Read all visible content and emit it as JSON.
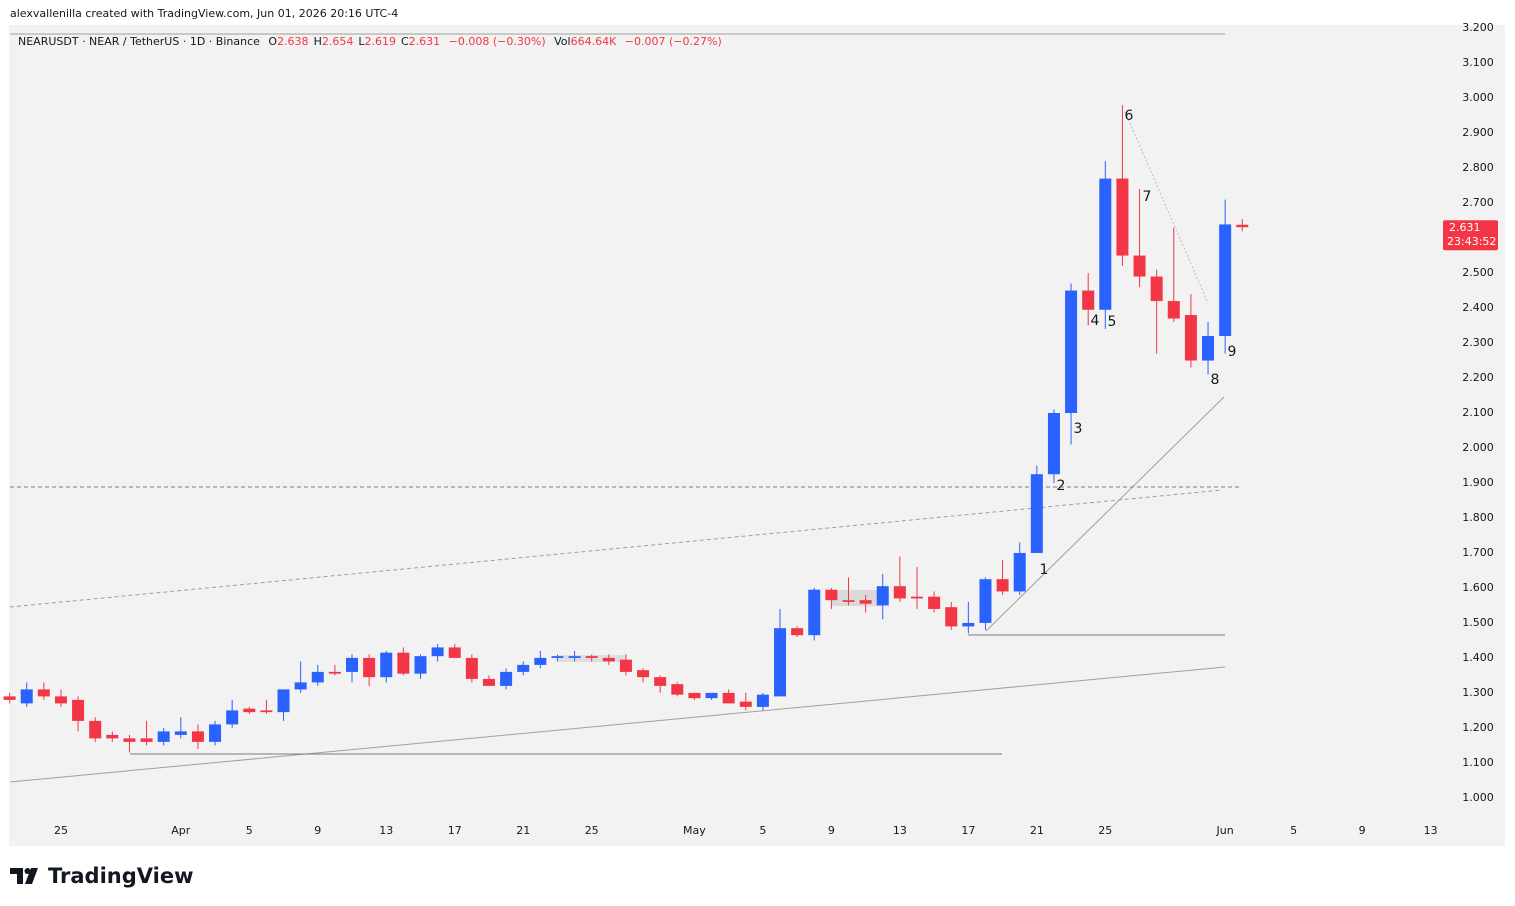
{
  "attribution": "alexvallenilla created with TradingView.com, Jun 01, 2026 20:16 UTC-4",
  "legend": {
    "symbol": "NEARUSDT · NEAR / TetherUS · 1D · Binance",
    "ohlc": [
      {
        "label": "O",
        "value": "2.638"
      },
      {
        "label": "H",
        "value": "2.654"
      },
      {
        "label": "L",
        "value": "2.619"
      },
      {
        "label": "C",
        "value": "2.631"
      }
    ],
    "change": "−0.008 (−0.30%)",
    "volume": {
      "label": "Vol",
      "value": "664.64K",
      "change": "−0.007 (−0.27%)"
    }
  },
  "footer": {
    "logo": "TradingView"
  },
  "chart_data": {
    "type": "candlestick",
    "x": [
      "2026-03-22",
      "2026-03-23",
      "2026-03-24",
      "2026-03-25",
      "2026-03-26",
      "2026-03-27",
      "2026-03-28",
      "2026-03-29",
      "2026-03-30",
      "2026-03-31",
      "2026-04-01",
      "2026-04-02",
      "2026-04-03",
      "2026-04-04",
      "2026-04-05",
      "2026-04-06",
      "2026-04-07",
      "2026-04-08",
      "2026-04-09",
      "2026-04-10",
      "2026-04-11",
      "2026-04-12",
      "2026-04-13",
      "2026-04-14",
      "2026-04-15",
      "2026-04-16",
      "2026-04-17",
      "2026-04-18",
      "2026-04-19",
      "2026-04-20",
      "2026-04-21",
      "2026-04-22",
      "2026-04-23",
      "2026-04-24",
      "2026-04-25",
      "2026-04-26",
      "2026-04-27",
      "2026-04-28",
      "2026-04-29",
      "2026-04-30",
      "2026-05-01",
      "2026-05-02",
      "2026-05-03",
      "2026-05-04",
      "2026-05-05",
      "2026-05-06",
      "2026-05-07",
      "2026-05-08",
      "2026-05-09",
      "2026-05-10",
      "2026-05-11",
      "2026-05-12",
      "2026-05-13",
      "2026-05-14",
      "2026-05-15",
      "2026-05-16",
      "2026-05-17",
      "2026-05-18",
      "2026-05-19",
      "2026-05-20",
      "2026-05-21",
      "2026-05-22",
      "2026-05-23",
      "2026-05-24",
      "2026-05-25",
      "2026-05-26",
      "2026-05-27",
      "2026-05-28",
      "2026-05-29",
      "2026-05-30",
      "2026-05-31",
      "2026-06-01",
      "2026-06-02"
    ],
    "open": [
      1.29,
      1.27,
      1.31,
      1.29,
      1.28,
      1.22,
      1.18,
      1.17,
      1.17,
      1.16,
      1.18,
      1.19,
      1.16,
      1.21,
      1.255,
      1.25,
      1.245,
      1.31,
      1.33,
      1.36,
      1.36,
      1.4,
      1.345,
      1.415,
      1.355,
      1.405,
      1.43,
      1.4,
      1.34,
      1.32,
      1.36,
      1.38,
      1.4,
      1.4,
      1.405,
      1.4,
      1.395,
      1.365,
      1.345,
      1.325,
      1.3,
      1.285,
      1.3,
      1.275,
      1.26,
      1.29,
      1.485,
      1.465,
      1.595,
      1.565,
      1.565,
      1.55,
      1.605,
      1.575,
      1.575,
      1.545,
      1.49,
      1.5,
      1.625,
      1.59,
      1.7,
      1.925,
      2.1,
      2.45,
      2.395,
      2.77,
      2.55,
      2.49,
      2.42,
      2.38,
      2.25,
      2.32,
      2.638
    ],
    "high": [
      1.3,
      1.33,
      1.33,
      1.31,
      1.29,
      1.23,
      1.19,
      1.18,
      1.22,
      1.2,
      1.23,
      1.21,
      1.22,
      1.28,
      1.26,
      1.28,
      1.31,
      1.39,
      1.38,
      1.38,
      1.41,
      1.41,
      1.42,
      1.43,
      1.41,
      1.44,
      1.44,
      1.41,
      1.35,
      1.37,
      1.39,
      1.42,
      1.41,
      1.42,
      1.41,
      1.41,
      1.41,
      1.37,
      1.35,
      1.33,
      1.3,
      1.3,
      1.31,
      1.3,
      1.3,
      1.54,
      1.49,
      1.6,
      1.6,
      1.63,
      1.58,
      1.64,
      1.69,
      1.66,
      1.59,
      1.56,
      1.56,
      1.63,
      1.68,
      1.73,
      1.95,
      2.11,
      2.47,
      2.5,
      2.82,
      2.98,
      2.74,
      2.51,
      2.63,
      2.44,
      2.36,
      2.71,
      2.654
    ],
    "low": [
      1.27,
      1.26,
      1.28,
      1.26,
      1.19,
      1.16,
      1.16,
      1.13,
      1.15,
      1.15,
      1.17,
      1.14,
      1.15,
      1.2,
      1.24,
      1.24,
      1.22,
      1.3,
      1.32,
      1.35,
      1.33,
      1.32,
      1.33,
      1.35,
      1.34,
      1.39,
      1.4,
      1.33,
      1.32,
      1.31,
      1.35,
      1.37,
      1.39,
      1.39,
      1.39,
      1.38,
      1.35,
      1.33,
      1.3,
      1.29,
      1.28,
      1.28,
      1.27,
      1.25,
      1.25,
      1.29,
      1.46,
      1.45,
      1.54,
      1.55,
      1.53,
      1.51,
      1.56,
      1.54,
      1.53,
      1.48,
      1.47,
      1.48,
      1.58,
      1.58,
      1.7,
      1.9,
      2.01,
      2.35,
      2.34,
      2.52,
      2.46,
      2.27,
      2.36,
      2.23,
      2.21,
      2.27,
      2.619
    ],
    "close": [
      1.28,
      1.31,
      1.29,
      1.27,
      1.22,
      1.17,
      1.17,
      1.16,
      1.16,
      1.19,
      1.19,
      1.16,
      1.21,
      1.25,
      1.245,
      1.245,
      1.31,
      1.33,
      1.36,
      1.355,
      1.4,
      1.345,
      1.415,
      1.355,
      1.405,
      1.43,
      1.4,
      1.34,
      1.32,
      1.36,
      1.38,
      1.4,
      1.405,
      1.405,
      1.4,
      1.39,
      1.36,
      1.345,
      1.32,
      1.295,
      1.285,
      1.3,
      1.27,
      1.26,
      1.295,
      1.485,
      1.465,
      1.595,
      1.565,
      1.56,
      1.555,
      1.605,
      1.57,
      1.57,
      1.54,
      1.49,
      1.5,
      1.625,
      1.59,
      1.7,
      1.925,
      2.1,
      2.45,
      2.395,
      2.77,
      2.55,
      2.49,
      2.42,
      2.37,
      2.25,
      2.32,
      2.639,
      2.631
    ],
    "up_color": "#2962ff",
    "down_color": "#f23645",
    "xlim": [
      "2026-03-22",
      "2026-06-13"
    ],
    "xticks": [
      {
        "value": "2026-03-25",
        "label": "25"
      },
      {
        "value": "2026-04-01",
        "label": "Apr"
      },
      {
        "value": "2026-04-05",
        "label": "5"
      },
      {
        "value": "2026-04-09",
        "label": "9"
      },
      {
        "value": "2026-04-13",
        "label": "13"
      },
      {
        "value": "2026-04-17",
        "label": "17"
      },
      {
        "value": "2026-04-21",
        "label": "21"
      },
      {
        "value": "2026-04-25",
        "label": "25"
      },
      {
        "value": "2026-05-01",
        "label": "May"
      },
      {
        "value": "2026-05-05",
        "label": "5"
      },
      {
        "value": "2026-05-09",
        "label": "9"
      },
      {
        "value": "2026-05-13",
        "label": "13"
      },
      {
        "value": "2026-05-17",
        "label": "17"
      },
      {
        "value": "2026-05-21",
        "label": "21"
      },
      {
        "value": "2026-05-25",
        "label": "25"
      },
      {
        "value": "2026-06-01",
        "label": "Jun"
      },
      {
        "value": "2026-06-05",
        "label": "5"
      },
      {
        "value": "2026-06-09",
        "label": "9"
      },
      {
        "value": "2026-06-13",
        "label": "13"
      }
    ],
    "ylim": [
      0.951,
      3.209
    ],
    "yticks": [
      {
        "value": 1.0,
        "label": "1.000"
      },
      {
        "value": 1.1,
        "label": "1.100"
      },
      {
        "value": 1.2,
        "label": "1.200"
      },
      {
        "value": 1.3,
        "label": "1.300"
      },
      {
        "value": 1.4,
        "label": "1.400"
      },
      {
        "value": 1.5,
        "label": "1.500"
      },
      {
        "value": 1.6,
        "label": "1.600"
      },
      {
        "value": 1.7,
        "label": "1.700"
      },
      {
        "value": 1.8,
        "label": "1.800"
      },
      {
        "value": 1.9,
        "label": "1.900"
      },
      {
        "value": 2.0,
        "label": "2.000"
      },
      {
        "value": 2.1,
        "label": "2.100"
      },
      {
        "value": 2.2,
        "label": "2.200"
      },
      {
        "value": 2.3,
        "label": "2.300"
      },
      {
        "value": 2.4,
        "label": "2.400"
      },
      {
        "value": 2.5,
        "label": "2.500"
      },
      {
        "value": 2.6,
        "label": "2.600"
      },
      {
        "value": 2.7,
        "label": "2.700"
      },
      {
        "value": 2.8,
        "label": "2.800"
      },
      {
        "value": 2.9,
        "label": "2.900"
      },
      {
        "value": 3.0,
        "label": "3.000"
      },
      {
        "value": 3.1,
        "label": "3.100"
      },
      {
        "value": 3.2,
        "label": "3.200"
      }
    ],
    "last_price": 2.631,
    "countdown": "23:43:52",
    "annotations": [
      "1",
      "2",
      "3",
      "4",
      "5",
      "6",
      "7",
      "8",
      "9"
    ]
  }
}
